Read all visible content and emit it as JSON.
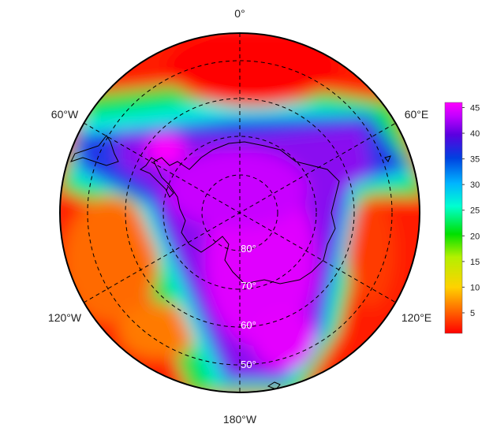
{
  "map": {
    "projection": "south-polar-stereographic",
    "longitude_labels": [
      {
        "key": "lon-0",
        "text": "0°"
      },
      {
        "key": "lon-60e",
        "text": "60°E"
      },
      {
        "key": "lon-120e",
        "text": "120°E"
      },
      {
        "key": "lon-180w",
        "text": "180°W"
      },
      {
        "key": "lon-120w",
        "text": "120°W"
      },
      {
        "key": "lon-60w",
        "text": "60°W"
      }
    ],
    "latitude_labels": [
      {
        "key": "lat-80",
        "text": "80°"
      },
      {
        "key": "lat-70",
        "text": "70°"
      },
      {
        "key": "lat-60",
        "text": "60°"
      },
      {
        "key": "lat-50",
        "text": "50°"
      }
    ],
    "graticule": {
      "latitudes": [
        80,
        70,
        60,
        50
      ],
      "meridians_every_deg": 60,
      "style": "dashed"
    },
    "features": [
      "Antarctica",
      "Antarctic Peninsula",
      "South America tip"
    ]
  },
  "colorbar": {
    "ticks": [
      "5",
      "10",
      "15",
      "20",
      "25",
      "30",
      "35",
      "40",
      "45"
    ],
    "min": 1,
    "max": 46,
    "colors": [
      "#ff0000",
      "#ff6a00",
      "#ffd200",
      "#b4f000",
      "#00e000",
      "#00ffd0",
      "#00b4ff",
      "#0040e0",
      "#5a00e0",
      "#c000ff",
      "#ff00ff"
    ]
  },
  "field": {
    "description_free": true,
    "high_region_value": 44,
    "low_region_value": 3
  }
}
